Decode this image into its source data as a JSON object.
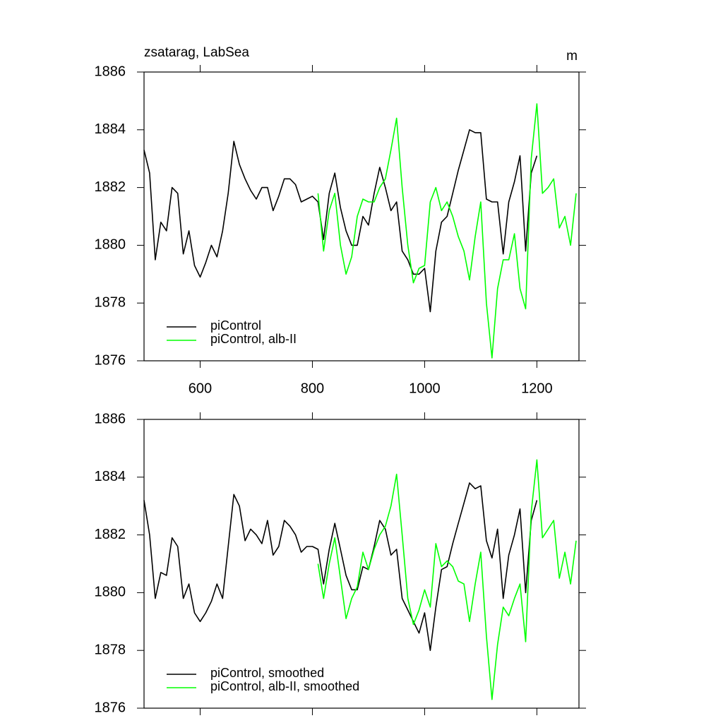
{
  "chart_data": [
    {
      "type": "line",
      "title": "zsatarag, LabSea",
      "units": "m",
      "x": [
        500,
        510,
        520,
        530,
        540,
        550,
        560,
        570,
        580,
        590,
        600,
        610,
        620,
        630,
        640,
        650,
        660,
        670,
        680,
        690,
        700,
        710,
        720,
        730,
        740,
        750,
        760,
        770,
        780,
        790,
        800,
        810,
        820,
        830,
        840,
        850,
        860,
        870,
        880,
        890,
        900,
        910,
        920,
        930,
        940,
        950,
        960,
        970,
        980,
        990,
        1000,
        1010,
        1020,
        1030,
        1040,
        1050,
        1060,
        1070,
        1080,
        1090,
        1100,
        1110,
        1120,
        1130,
        1140,
        1150,
        1160,
        1170,
        1180,
        1190,
        1200,
        1210,
        1220,
        1230,
        1240,
        1250,
        1260,
        1270
      ],
      "series": [
        {
          "name": "piControl",
          "color": "#000000",
          "values": [
            1883.3,
            1882.5,
            1879.5,
            1880.8,
            1880.5,
            1882.0,
            1881.8,
            1879.7,
            1880.5,
            1879.3,
            1878.9,
            1879.4,
            1880.0,
            1879.6,
            1880.5,
            1881.8,
            1883.6,
            1882.8,
            1882.3,
            1881.9,
            1881.6,
            1882.0,
            1882.0,
            1881.2,
            1881.7,
            1882.3,
            1882.3,
            1882.1,
            1881.5,
            1881.6,
            1881.7,
            1881.5,
            1880.2,
            1881.8,
            1882.5,
            1881.3,
            1880.5,
            1880.0,
            1880.0,
            1881.0,
            1880.7,
            1881.8,
            1882.7,
            1882.0,
            1881.2,
            1881.5,
            1879.8,
            1879.5,
            1879.0,
            1879.0,
            1879.2,
            1877.7,
            1879.8,
            1880.8,
            1881.0,
            1881.8,
            1882.6,
            1883.3,
            1884.0,
            1883.9,
            1883.9,
            1881.6,
            1881.5,
            1881.5,
            1879.7,
            1881.5,
            1882.2,
            1883.1,
            1879.8,
            1882.5,
            1883.1,
            null,
            null,
            null,
            null,
            null,
            null,
            null
          ]
        },
        {
          "name": "piControl, alb-II",
          "color": "#00ff00",
          "values": [
            null,
            null,
            null,
            null,
            null,
            null,
            null,
            null,
            null,
            null,
            null,
            null,
            null,
            null,
            null,
            null,
            null,
            null,
            null,
            null,
            null,
            null,
            null,
            null,
            null,
            null,
            null,
            null,
            null,
            null,
            null,
            1881.8,
            1879.8,
            1881.2,
            1881.8,
            1880.0,
            1879.0,
            1879.6,
            1881.0,
            1881.6,
            1881.5,
            1881.5,
            1882.0,
            1882.3,
            1883.3,
            1884.4,
            1882.0,
            1880.0,
            1878.7,
            1879.2,
            1879.3,
            1881.5,
            1882.0,
            1881.2,
            1881.5,
            1881.0,
            1880.3,
            1879.8,
            1878.8,
            1880.3,
            1881.5,
            1878.0,
            1876.1,
            1878.5,
            1879.5,
            1879.5,
            1880.4,
            1878.5,
            1877.8,
            1883.0,
            1884.9,
            1881.8,
            1882.0,
            1882.3,
            1880.6,
            1881.0,
            1880.0,
            1881.8
          ]
        }
      ],
      "xlim": [
        500,
        1275
      ],
      "ylim": [
        1876,
        1886
      ],
      "xticks": [
        600,
        800,
        1000,
        1200
      ],
      "yticks": [
        1876,
        1878,
        1880,
        1882,
        1884,
        1886
      ],
      "show_xtick_labels": true,
      "legend": "lower left"
    },
    {
      "type": "line",
      "x": [
        500,
        510,
        520,
        530,
        540,
        550,
        560,
        570,
        580,
        590,
        600,
        610,
        620,
        630,
        640,
        650,
        660,
        670,
        680,
        690,
        700,
        710,
        720,
        730,
        740,
        750,
        760,
        770,
        780,
        790,
        800,
        810,
        820,
        830,
        840,
        850,
        860,
        870,
        880,
        890,
        900,
        910,
        920,
        930,
        940,
        950,
        960,
        970,
        980,
        990,
        1000,
        1010,
        1020,
        1030,
        1040,
        1050,
        1060,
        1070,
        1080,
        1090,
        1100,
        1110,
        1120,
        1130,
        1140,
        1150,
        1160,
        1170,
        1180,
        1190,
        1200,
        1210,
        1220,
        1230,
        1240,
        1250,
        1260,
        1270
      ],
      "series": [
        {
          "name": "piControl, smoothed",
          "color": "#000000",
          "values": [
            1883.2,
            1882.0,
            1879.8,
            1880.7,
            1880.6,
            1881.9,
            1881.6,
            1879.8,
            1880.3,
            1879.3,
            1879.0,
            1879.3,
            1879.7,
            1880.3,
            1879.8,
            1881.6,
            1883.4,
            1883.0,
            1881.8,
            1882.2,
            1882.0,
            1881.7,
            1882.5,
            1881.3,
            1881.6,
            1882.5,
            1882.3,
            1882.0,
            1881.4,
            1881.6,
            1881.6,
            1881.5,
            1880.3,
            1881.5,
            1882.4,
            1881.5,
            1880.6,
            1880.1,
            1880.1,
            1880.9,
            1880.8,
            1881.6,
            1882.5,
            1882.2,
            1881.3,
            1881.5,
            1879.8,
            1879.4,
            1879.0,
            1878.6,
            1879.3,
            1878.0,
            1879.5,
            1880.8,
            1880.9,
            1881.7,
            1882.4,
            1883.1,
            1883.8,
            1883.6,
            1883.7,
            1881.8,
            1881.2,
            1882.2,
            1879.8,
            1881.3,
            1882.0,
            1882.9,
            1880.0,
            1882.5,
            1883.2,
            null,
            null,
            null,
            null,
            null,
            null,
            null
          ]
        },
        {
          "name": "piControl, alb-II, smoothed",
          "color": "#00ff00",
          "values": [
            null,
            null,
            null,
            null,
            null,
            null,
            null,
            null,
            null,
            null,
            null,
            null,
            null,
            null,
            null,
            null,
            null,
            null,
            null,
            null,
            null,
            null,
            null,
            null,
            null,
            null,
            null,
            null,
            null,
            null,
            null,
            1881.0,
            1879.8,
            1881.0,
            1881.9,
            1880.5,
            1879.1,
            1879.8,
            1880.2,
            1881.4,
            1880.8,
            1881.5,
            1882.0,
            1882.3,
            1883.0,
            1884.1,
            1882.0,
            1879.8,
            1878.9,
            1879.4,
            1880.1,
            1879.5,
            1881.7,
            1880.9,
            1881.1,
            1880.9,
            1880.4,
            1880.3,
            1879.0,
            1880.3,
            1881.4,
            1878.5,
            1876.3,
            1878.2,
            1879.5,
            1879.2,
            1879.8,
            1880.3,
            1878.3,
            1882.8,
            1884.6,
            1881.9,
            1882.2,
            1882.5,
            1880.5,
            1881.4,
            1880.3,
            1881.8
          ]
        }
      ],
      "xlim": [
        500,
        1275
      ],
      "ylim": [
        1876,
        1886
      ],
      "xticks": [
        600,
        800,
        1000,
        1200
      ],
      "yticks": [
        1876,
        1878,
        1880,
        1882,
        1884,
        1886
      ],
      "show_xtick_labels": false,
      "legend": "lower left"
    }
  ]
}
